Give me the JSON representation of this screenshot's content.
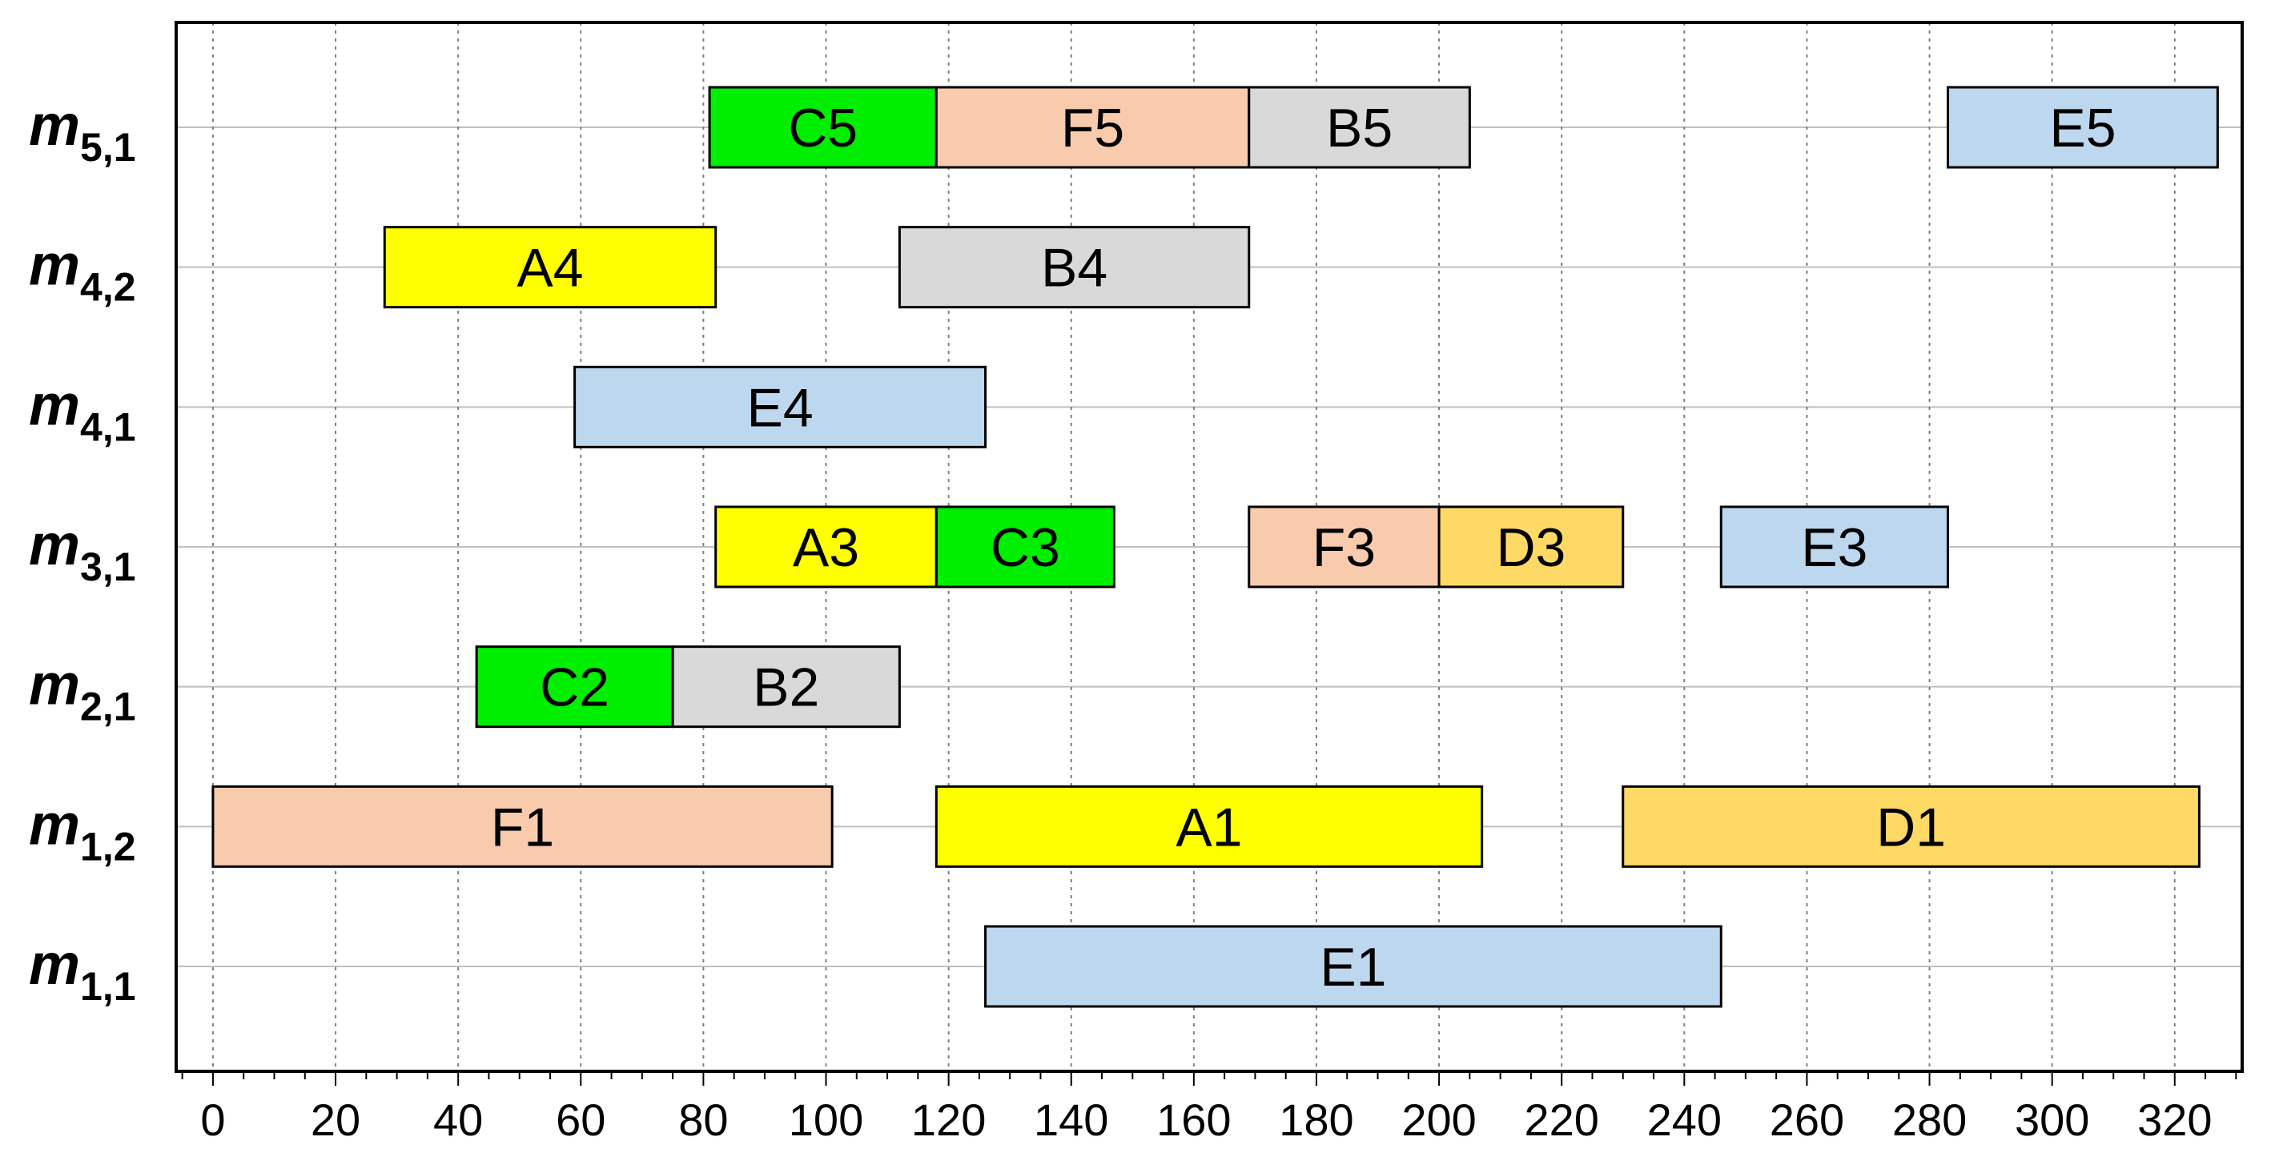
{
  "chart_data": {
    "type": "gantt",
    "title": "",
    "xlabel": "",
    "ylabel": "",
    "xlim": [
      -6,
      331
    ],
    "x_ticks": [
      0,
      20,
      40,
      60,
      80,
      100,
      120,
      140,
      160,
      180,
      200,
      220,
      240,
      260,
      280,
      300,
      320
    ],
    "x_minor_step": 5,
    "grid": {
      "vertical": "dotted",
      "horizontal": "solid"
    },
    "rows": [
      {
        "id": "m51",
        "base": "m",
        "sub": "5,1"
      },
      {
        "id": "m42",
        "base": "m",
        "sub": "4,2"
      },
      {
        "id": "m41",
        "base": "m",
        "sub": "4,1"
      },
      {
        "id": "m31",
        "base": "m",
        "sub": "3,1"
      },
      {
        "id": "m21",
        "base": "m",
        "sub": "2,1"
      },
      {
        "id": "m12",
        "base": "m",
        "sub": "1,2"
      },
      {
        "id": "m11",
        "base": "m",
        "sub": "1,1"
      }
    ],
    "colors": {
      "A": "#ffff00",
      "B": "#d9d9d9",
      "C": "#00ee00",
      "D": "#ffd966",
      "E": "#bdd7ee",
      "F": "#f8cbad"
    },
    "tasks": [
      {
        "row": "m51",
        "label": "C5",
        "job": "C",
        "start": 81,
        "end": 118
      },
      {
        "row": "m51",
        "label": "F5",
        "job": "F",
        "start": 118,
        "end": 169
      },
      {
        "row": "m51",
        "label": "B5",
        "job": "B",
        "start": 169,
        "end": 205
      },
      {
        "row": "m51",
        "label": "E5",
        "job": "E",
        "start": 283,
        "end": 327
      },
      {
        "row": "m42",
        "label": "A4",
        "job": "A",
        "start": 28,
        "end": 82
      },
      {
        "row": "m42",
        "label": "B4",
        "job": "B",
        "start": 112,
        "end": 169
      },
      {
        "row": "m41",
        "label": "E4",
        "job": "E",
        "start": 59,
        "end": 126
      },
      {
        "row": "m31",
        "label": "A3",
        "job": "A",
        "start": 82,
        "end": 118
      },
      {
        "row": "m31",
        "label": "C3",
        "job": "C",
        "start": 118,
        "end": 147
      },
      {
        "row": "m31",
        "label": "F3",
        "job": "F",
        "start": 169,
        "end": 200
      },
      {
        "row": "m31",
        "label": "D3",
        "job": "D",
        "start": 200,
        "end": 230
      },
      {
        "row": "m31",
        "label": "E3",
        "job": "E",
        "start": 246,
        "end": 283
      },
      {
        "row": "m21",
        "label": "C2",
        "job": "C",
        "start": 43,
        "end": 75
      },
      {
        "row": "m21",
        "label": "B2",
        "job": "B",
        "start": 75,
        "end": 112
      },
      {
        "row": "m12",
        "label": "F1",
        "job": "F",
        "start": 0,
        "end": 101
      },
      {
        "row": "m12",
        "label": "A1",
        "job": "A",
        "start": 118,
        "end": 207
      },
      {
        "row": "m12",
        "label": "D1",
        "job": "D",
        "start": 230,
        "end": 324
      },
      {
        "row": "m11",
        "label": "E1",
        "job": "E",
        "start": 126,
        "end": 246
      }
    ]
  }
}
